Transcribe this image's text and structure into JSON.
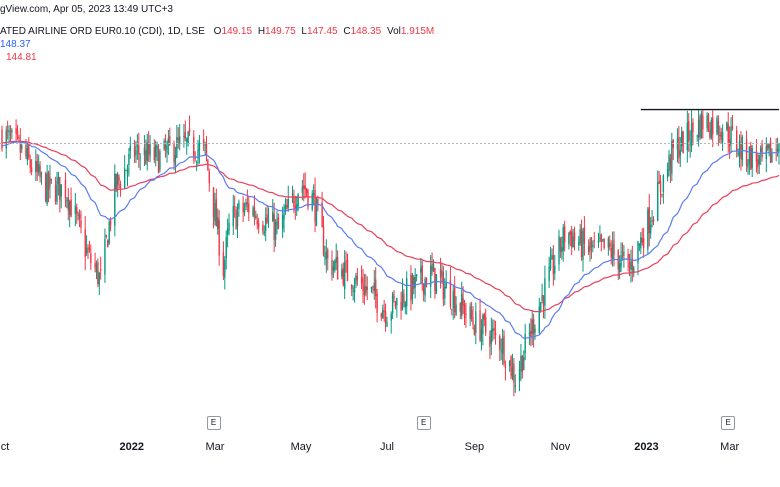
{
  "header": {
    "source_line": "gView.com, Apr 05, 2023 13:49 UTC+3",
    "symbol": "ATED AIRLINE ORD EUR0.10 (CDI), 1D, LSE",
    "open_label": "O",
    "open_value": "149.15",
    "high_label": "H",
    "high_value": "149.75",
    "low_label": "L",
    "low_value": "147.45",
    "close_label": "C",
    "close_value": "148.35",
    "vol_label": "Vol",
    "vol_value": "1.915M"
  },
  "moving_averages": {
    "ma_fast_value": "148.37",
    "ma_slow_value": "144.81"
  },
  "colors": {
    "up": "#089981",
    "down": "#f23645",
    "ma_fast": "#5b7cf2",
    "ma_slow": "#e8405c",
    "resistance": "#131722",
    "price_line": "#b2b5be"
  },
  "x_axis": {
    "ticks": [
      {
        "label": "ct",
        "bold": false
      },
      {
        "label": "2022",
        "bold": true
      },
      {
        "label": "Mar",
        "bold": false
      },
      {
        "label": "May",
        "bold": false
      },
      {
        "label": "Jul",
        "bold": false
      },
      {
        "label": "Sep",
        "bold": false
      },
      {
        "label": "Nov",
        "bold": false
      },
      {
        "label": "2023",
        "bold": true
      },
      {
        "label": "Mar",
        "bold": false
      }
    ],
    "earnings_marker": "E"
  },
  "chart_data": {
    "type": "candlestick",
    "start": "2021-10-01",
    "end": "2023-04-05",
    "anchors": [
      [
        "2021-10-01",
        150
      ],
      [
        "2021-10-15",
        147
      ],
      [
        "2021-11-01",
        141
      ],
      [
        "2021-11-15",
        141
      ],
      [
        "2021-12-01",
        130
      ],
      [
        "2021-12-10",
        126
      ],
      [
        "2021-12-20",
        141
      ],
      [
        "2022-01-03",
        147
      ],
      [
        "2022-01-20",
        146
      ],
      [
        "2022-02-03",
        148
      ],
      [
        "2022-02-12",
        148
      ],
      [
        "2022-02-22",
        147
      ],
      [
        "2022-03-07",
        128
      ],
      [
        "2022-03-12",
        136
      ],
      [
        "2022-03-25",
        138
      ],
      [
        "2022-04-15",
        134
      ],
      [
        "2022-05-01",
        142
      ],
      [
        "2022-05-10",
        139
      ],
      [
        "2022-05-20",
        129
      ],
      [
        "2022-06-03",
        127
      ],
      [
        "2022-06-20",
        124
      ],
      [
        "2022-07-01",
        121
      ],
      [
        "2022-07-15",
        124
      ],
      [
        "2022-08-01",
        127
      ],
      [
        "2022-08-15",
        124
      ],
      [
        "2022-09-01",
        119
      ],
      [
        "2022-09-20",
        116
      ],
      [
        "2022-09-30",
        110
      ],
      [
        "2022-10-10",
        117
      ],
      [
        "2022-10-20",
        124
      ],
      [
        "2022-11-05",
        134
      ],
      [
        "2022-11-20",
        131
      ],
      [
        "2022-12-05",
        131
      ],
      [
        "2022-12-20",
        128
      ],
      [
        "2023-01-03",
        136
      ],
      [
        "2023-01-20",
        147
      ],
      [
        "2023-02-10",
        152
      ],
      [
        "2023-02-25",
        151
      ],
      [
        "2023-03-10",
        147
      ],
      [
        "2023-03-25",
        145
      ],
      [
        "2023-04-05",
        148.35
      ]
    ],
    "ma_fast_last": 148.37,
    "ma_slow_last": 144.81,
    "resistance_level": 153.9,
    "last_close": 148.35,
    "ylim": [
      104,
      162
    ]
  }
}
